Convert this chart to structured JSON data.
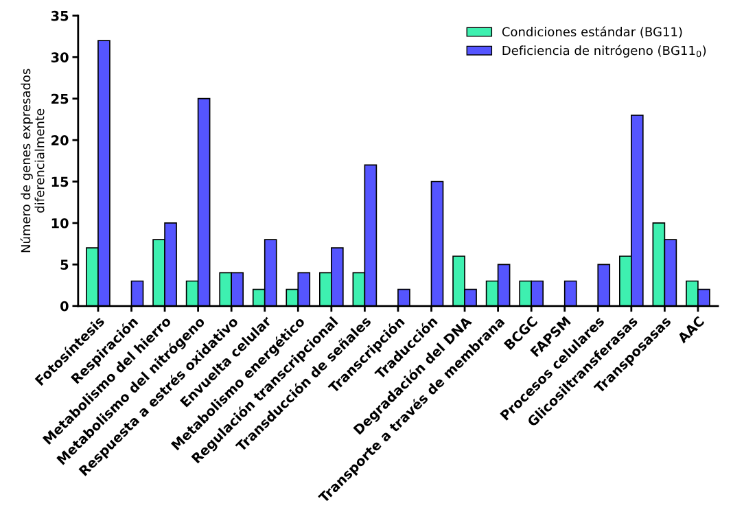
{
  "chart_data": {
    "type": "bar",
    "ylabel": "Número de genes expresados\ndiferencialmente",
    "categories": [
      "Fotosíntesis",
      "Respiración",
      "Metabolismo del hierro",
      "Metabolismo del nitrógeno",
      "Respuesta a estrés oxidativo",
      "Envuelta celular",
      "Metabolismo energético",
      "Regulación transcripcional",
      "Transducción de señales",
      "Transcripción",
      "Traducción",
      "Degradación del DNA",
      "Transporte a través de membrana",
      "BCGC",
      "FAPSM",
      "Procesos celulares",
      "Glicosiltransferasas",
      "Transposasas",
      "AAC"
    ],
    "series": [
      {
        "name": "Condiciones estándar (BG11)",
        "color": "#3ef0b0",
        "values": [
          7,
          0,
          8,
          3,
          4,
          2,
          2,
          4,
          4,
          0,
          0,
          6,
          3,
          3,
          0,
          0,
          6,
          10,
          3
        ]
      },
      {
        "name": "Deficiencia de nitrógeno (BG11$_{0}$)",
        "color": "#5555ff",
        "values": [
          32,
          3,
          10,
          25,
          4,
          8,
          4,
          7,
          17,
          2,
          15,
          2,
          5,
          3,
          3,
          5,
          23,
          8,
          2
        ]
      }
    ],
    "ylim": [
      0,
      35
    ],
    "yticks": [
      0,
      5,
      10,
      15,
      20,
      25,
      30,
      35
    ],
    "grid": false,
    "legend": "top right"
  }
}
